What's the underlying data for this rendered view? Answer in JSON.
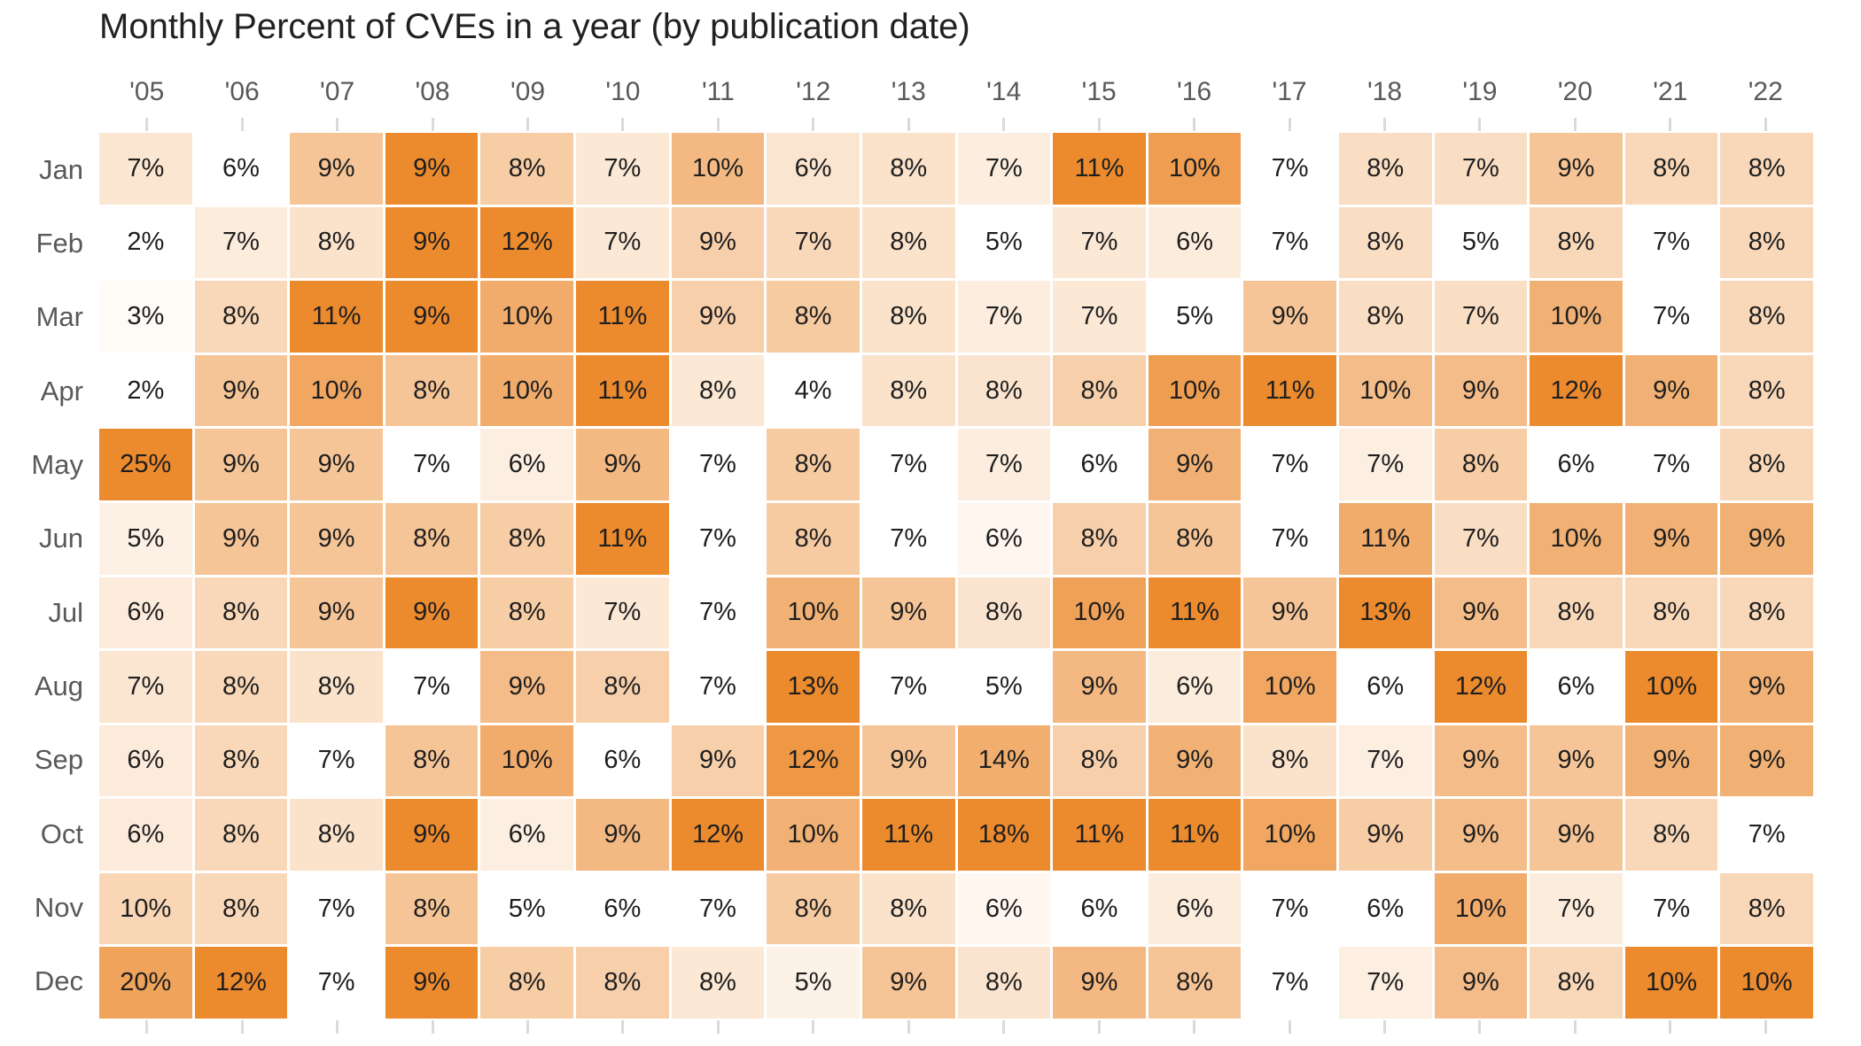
{
  "chart_data": {
    "type": "heatmap",
    "title": "Monthly Percent of CVEs in a year (by publication date)",
    "x_labels": [
      "'05",
      "'06",
      "'07",
      "'08",
      "'09",
      "'10",
      "'11",
      "'12",
      "'13",
      "'14",
      "'15",
      "'16",
      "'17",
      "'18",
      "'19",
      "'20",
      "'21",
      "'22"
    ],
    "y_labels": [
      "Jan",
      "Feb",
      "Mar",
      "Apr",
      "May",
      "Jun",
      "Jul",
      "Aug",
      "Sep",
      "Oct",
      "Nov",
      "Dec"
    ],
    "values_percent": [
      [
        7,
        6,
        9,
        9,
        8,
        7,
        10,
        6,
        8,
        7,
        11,
        10,
        7,
        8,
        7,
        9,
        8,
        8
      ],
      [
        2,
        7,
        8,
        9,
        12,
        7,
        9,
        7,
        8,
        5,
        7,
        6,
        7,
        8,
        5,
        8,
        7,
        8
      ],
      [
        3,
        8,
        11,
        9,
        10,
        11,
        9,
        8,
        8,
        7,
        7,
        5,
        9,
        8,
        7,
        10,
        7,
        8
      ],
      [
        2,
        9,
        10,
        8,
        10,
        11,
        8,
        4,
        8,
        8,
        8,
        10,
        11,
        10,
        9,
        12,
        9,
        8
      ],
      [
        25,
        9,
        9,
        7,
        6,
        9,
        7,
        8,
        7,
        7,
        6,
        9,
        7,
        7,
        8,
        6,
        7,
        8
      ],
      [
        5,
        9,
        9,
        8,
        8,
        11,
        7,
        8,
        7,
        6,
        8,
        8,
        7,
        11,
        7,
        10,
        9,
        9
      ],
      [
        6,
        8,
        9,
        9,
        8,
        7,
        7,
        10,
        9,
        8,
        10,
        11,
        9,
        13,
        9,
        8,
        8,
        8
      ],
      [
        7,
        8,
        8,
        7,
        9,
        8,
        7,
        13,
        7,
        5,
        9,
        6,
        10,
        6,
        12,
        6,
        10,
        9
      ],
      [
        6,
        8,
        7,
        8,
        10,
        6,
        9,
        12,
        9,
        14,
        8,
        9,
        8,
        7,
        9,
        9,
        9,
        9
      ],
      [
        6,
        8,
        8,
        9,
        6,
        9,
        12,
        10,
        11,
        18,
        11,
        11,
        10,
        9,
        9,
        9,
        8,
        7
      ],
      [
        10,
        8,
        7,
        8,
        5,
        6,
        7,
        8,
        8,
        6,
        6,
        6,
        7,
        6,
        10,
        7,
        7,
        8
      ],
      [
        20,
        12,
        7,
        9,
        8,
        8,
        8,
        5,
        9,
        8,
        9,
        8,
        7,
        7,
        9,
        8,
        10,
        10
      ]
    ],
    "cell_label_suffix": "%",
    "color_scale": {
      "type": "linear",
      "normalization": "per-column: each year scaled from its min value to its max value",
      "min_color": "#FFFFFF",
      "max_color": "#EC8A2E"
    },
    "layout": {
      "legend": "none",
      "gridlines": "3px white gaps between cells",
      "axis_ticks": "short gray ticks above and below grid at each column center"
    }
  },
  "colors": {
    "background": "#FFFFFF",
    "title_text": "#212121",
    "axis_text": "#58595B",
    "cell_text": "#1E1E1E",
    "tick": "#DADADA"
  }
}
